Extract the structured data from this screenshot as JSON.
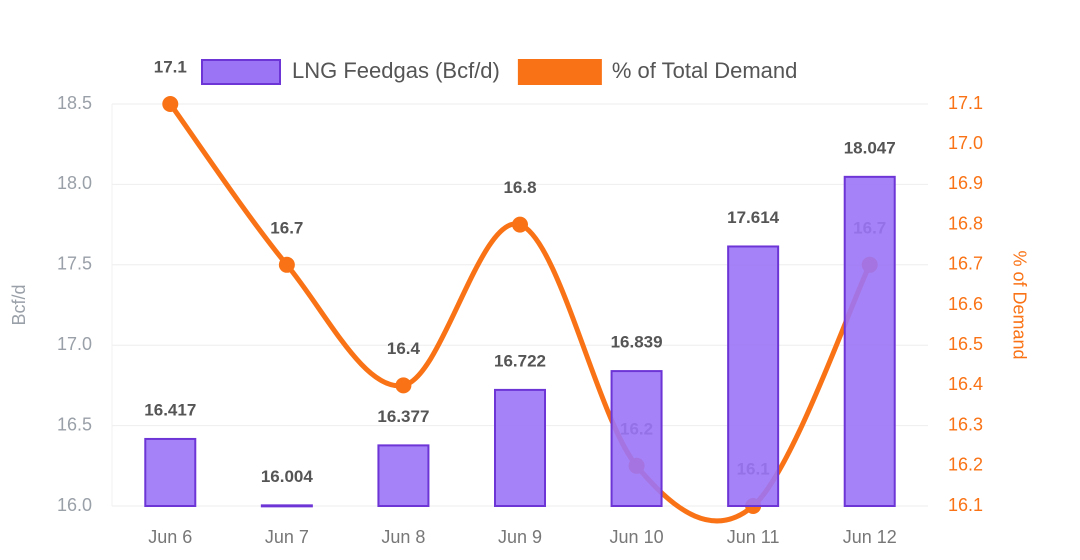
{
  "chart_data": {
    "type": "bar",
    "categories": [
      "Jun 6",
      "Jun 7",
      "Jun 8",
      "Jun 9",
      "Jun 10",
      "Jun 11",
      "Jun 12"
    ],
    "series": [
      {
        "name": "LNG Feedgas (Bcf/d)",
        "type": "bar",
        "color": "#9b74f6",
        "values": [
          16.417,
          16.004,
          16.377,
          16.722,
          16.839,
          17.614,
          18.047
        ]
      },
      {
        "name": "% of Total Demand",
        "type": "line",
        "axis": "y2",
        "color": "#f97316",
        "values": [
          17.1,
          16.7,
          16.4,
          16.8,
          16.2,
          16.1,
          16.7
        ]
      }
    ],
    "ylabel": "Bcf/d",
    "y2label": "% of Demand",
    "ylim": [
      16.0,
      18.5
    ],
    "yticks": [
      {
        "value": 16,
        "label": "16.0"
      },
      16.5,
      {
        "value": 17,
        "label": "17.0"
      },
      17.5,
      {
        "value": 18,
        "label": "18.0"
      },
      18.5
    ],
    "y2lim": [
      16.1,
      17.1
    ],
    "y2ticks": [
      16.1,
      16.2,
      16.3,
      16.4,
      16.5,
      16.6,
      16.7,
      16.8,
      16.9,
      {
        "value": 17,
        "label": "17.0"
      },
      17.1
    ],
    "grid": true
  }
}
